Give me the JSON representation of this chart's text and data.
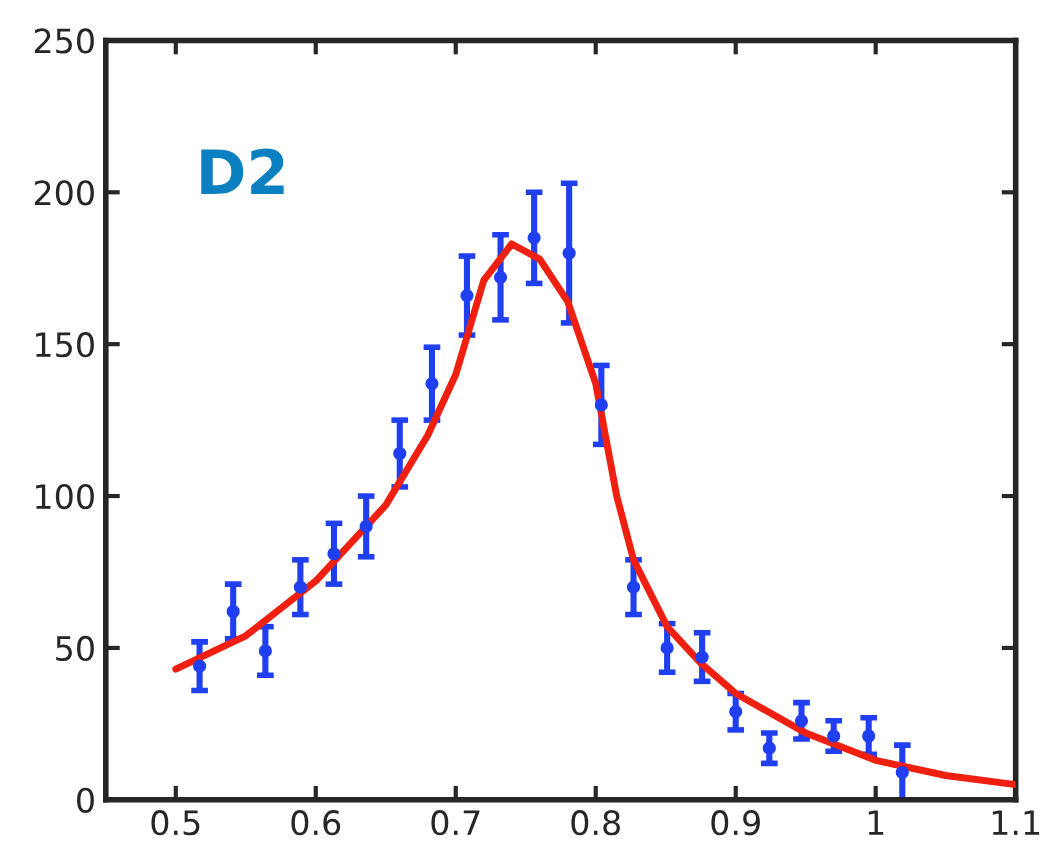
{
  "chart_data": {
    "type": "scatter",
    "annotations": [
      "D2"
    ],
    "xlim": [
      0.45,
      1.1
    ],
    "xticks": [
      0.5,
      0.6,
      0.7,
      0.8,
      0.9,
      1,
      1.1
    ],
    "ylim": [
      0,
      250
    ],
    "yticks": [
      0,
      50,
      100,
      150,
      200,
      250
    ],
    "grid": false,
    "series": [
      {
        "color": "#1f3ff0",
        "marker": "circle",
        "x": [
          0.517,
          0.541,
          0.564,
          0.589,
          0.613,
          0.636,
          0.66,
          0.683,
          0.708,
          0.732,
          0.756,
          0.781,
          0.804,
          0.827,
          0.851,
          0.876,
          0.9,
          0.924,
          0.947,
          0.97,
          0.995,
          1.019
        ],
        "values": [
          44,
          62,
          49,
          70,
          81,
          90,
          114,
          137,
          166,
          172,
          185,
          180,
          130,
          70,
          50,
          47,
          29,
          17,
          26,
          21,
          21,
          9
        ],
        "errors": [
          8,
          9,
          8,
          9,
          10,
          10,
          11,
          12,
          13,
          14,
          15,
          23,
          13,
          9,
          8,
          8,
          6,
          5,
          6,
          5,
          6,
          9
        ]
      },
      {
        "type": "line",
        "color": "#f02010",
        "marker": "none",
        "line_style": "solid",
        "x": [
          0.5,
          0.55,
          0.6,
          0.65,
          0.68,
          0.7,
          0.72,
          0.74,
          0.76,
          0.78,
          0.8,
          0.815,
          0.827,
          0.851,
          0.875,
          0.9,
          0.95,
          1.0,
          1.05,
          1.1
        ],
        "values": [
          43,
          54,
          72,
          97,
          120,
          140,
          171,
          183,
          178,
          164,
          137,
          100,
          79,
          57,
          45,
          35,
          22,
          13,
          8,
          5
        ]
      }
    ]
  }
}
